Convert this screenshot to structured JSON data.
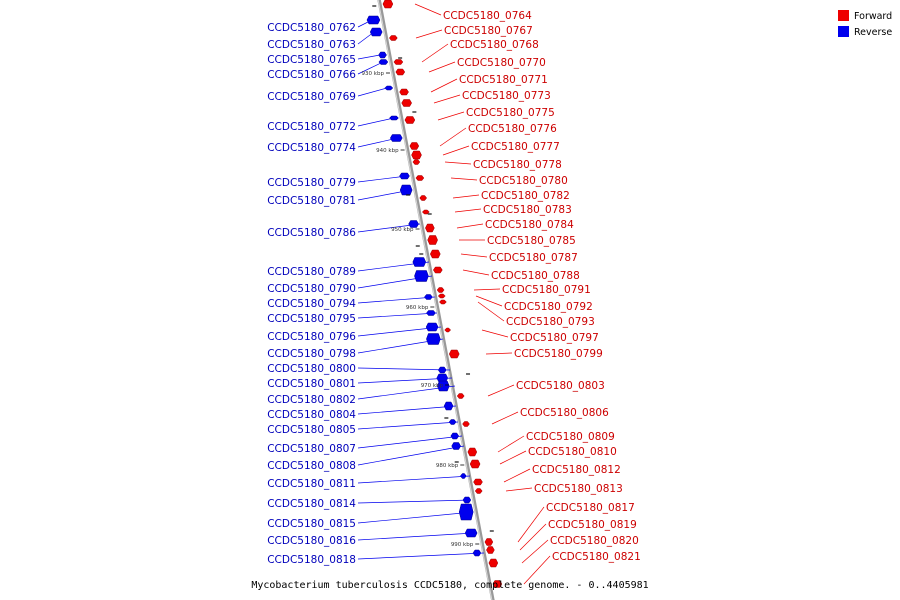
{
  "caption": "Mycobacterium tuberculosis CCDC5180, complete genome. - 0..4405981",
  "legend": {
    "items": [
      {
        "label": "Forward",
        "color": "#ee0000"
      },
      {
        "label": "Reverse",
        "color": "#0000ee"
      }
    ]
  },
  "colors": {
    "forward": "#ee0000",
    "forward_dark": "#990000",
    "forward_label": "#cc0000",
    "reverse": "#0000ee",
    "reverse_dark": "#000088",
    "reverse_label": "#0000bb",
    "axis": "#999999"
  },
  "scale_ticks": [
    "930 kbp",
    "940 kbp",
    "950 kbp",
    "960 kbp",
    "970 kbp",
    "980 kbp",
    "990 kbp"
  ],
  "genes": {
    "reverse": [
      "CCDC5180_0762",
      "CCDC5180_0763",
      "CCDC5180_0765",
      "CCDC5180_0766",
      "CCDC5180_0769",
      "CCDC5180_0772",
      "CCDC5180_0774",
      "CCDC5180_0779",
      "CCDC5180_0781",
      "CCDC5180_0786",
      "CCDC5180_0789",
      "CCDC5180_0790",
      "CCDC5180_0794",
      "CCDC5180_0795",
      "CCDC5180_0796",
      "CCDC5180_0798",
      "CCDC5180_0800",
      "CCDC5180_0801",
      "CCDC5180_0802",
      "CCDC5180_0804",
      "CCDC5180_0805",
      "CCDC5180_0807",
      "CCDC5180_0808",
      "CCDC5180_0811",
      "CCDC5180_0814",
      "CCDC5180_0815",
      "CCDC5180_0816",
      "CCDC5180_0818"
    ],
    "forward": [
      "CCDC5180_0764",
      "CCDC5180_0767",
      "CCDC5180_0768",
      "CCDC5180_0770",
      "CCDC5180_0771",
      "CCDC5180_0773",
      "CCDC5180_0775",
      "CCDC5180_0776",
      "CCDC5180_0777",
      "CCDC5180_0778",
      "CCDC5180_0780",
      "CCDC5180_0782",
      "CCDC5180_0783",
      "CCDC5180_0784",
      "CCDC5180_0785",
      "CCDC5180_0787",
      "CCDC5180_0788",
      "CCDC5180_0791",
      "CCDC5180_0792",
      "CCDC5180_0793",
      "CCDC5180_0797",
      "CCDC5180_0799",
      "CCDC5180_0803",
      "CCDC5180_0806",
      "CCDC5180_0809",
      "CCDC5180_0810",
      "CCDC5180_0812",
      "CCDC5180_0813",
      "CCDC5180_0817",
      "CCDC5180_0819",
      "CCDC5180_0820",
      "CCDC5180_0821"
    ]
  }
}
